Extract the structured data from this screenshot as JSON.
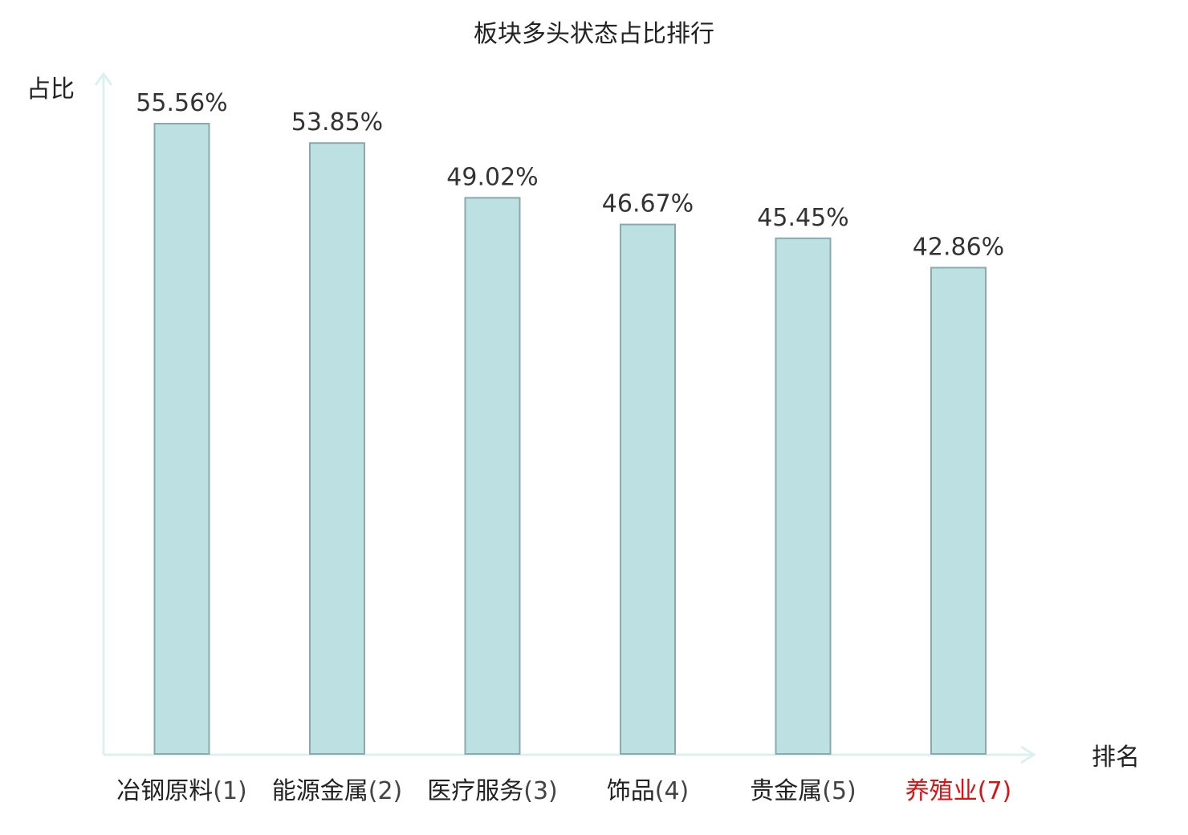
{
  "chart_data": {
    "type": "bar",
    "title": "板块多头状态占比排行",
    "xlabel": "排名",
    "ylabel": "占比",
    "categories": [
      {
        "name": "冶钢原料",
        "rank": "(1)",
        "highlight": false
      },
      {
        "name": "能源金属",
        "rank": "(2)",
        "highlight": false
      },
      {
        "name": "医疗服务",
        "rank": "(3)",
        "highlight": false
      },
      {
        "name": "饰品",
        "rank": "(4)",
        "highlight": false
      },
      {
        "name": "贵金属",
        "rank": "(5)",
        "highlight": false
      },
      {
        "name": "养殖业",
        "rank": "(7)",
        "highlight": true
      }
    ],
    "values": [
      55.56,
      53.85,
      49.02,
      46.67,
      45.45,
      42.86
    ],
    "value_labels": [
      "55.56%",
      "53.85%",
      "49.02%",
      "46.67%",
      "45.45%",
      "42.86%"
    ],
    "ylim": [
      0,
      60
    ],
    "grid": false,
    "colors": {
      "bar_fill": "#bde0e3",
      "bar_stroke": "#8aa9ab",
      "axis": "#dcf0ee",
      "highlight_text": "#e01010",
      "normal_text": "#222222",
      "rank_text": "#444444"
    }
  }
}
